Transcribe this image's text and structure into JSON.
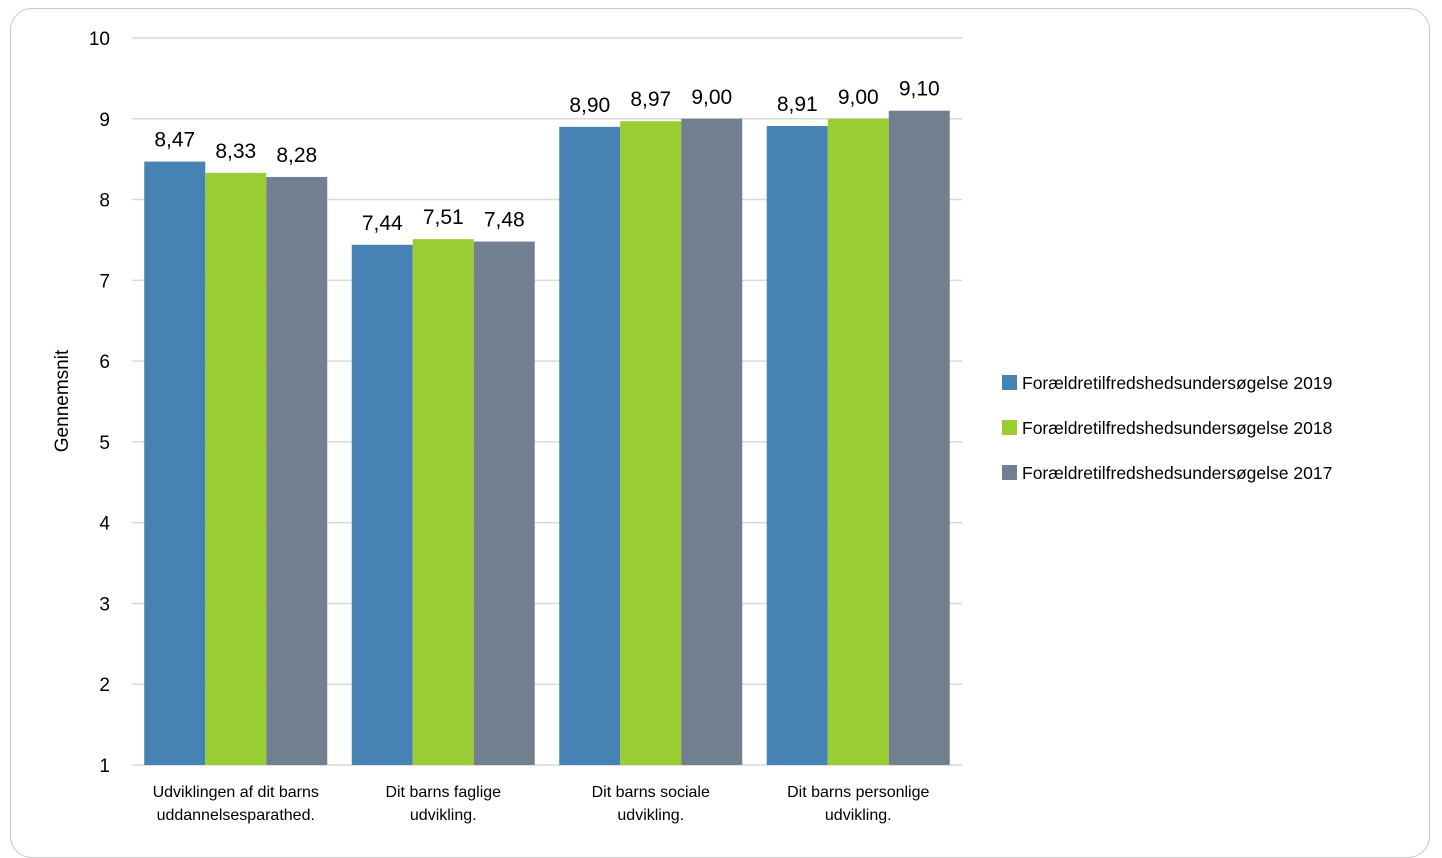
{
  "chart_data": {
    "type": "bar",
    "ylabel": "Gennemsnit",
    "ylim": [
      1,
      10
    ],
    "yticks": [
      1,
      2,
      3,
      4,
      5,
      6,
      7,
      8,
      9,
      10
    ],
    "grid": true,
    "legend_position": "right",
    "categories": [
      [
        "Udviklingen af dit barns",
        "uddannelsesparathed."
      ],
      [
        "Dit barns faglige",
        "udvikling."
      ],
      [
        "Dit barns sociale",
        "udvikling."
      ],
      [
        "Dit barns personlige",
        "udvikling."
      ]
    ],
    "series": [
      {
        "name": "Forældretilfredshedsundersøgelse 2019",
        "color": "#4682b4",
        "values": [
          8.47,
          7.44,
          8.9,
          8.91
        ],
        "labels": [
          "8,47",
          "7,44",
          "8,90",
          "8,91"
        ]
      },
      {
        "name": "Forældretilfredshedsundersøgelse 2018",
        "color": "#9acd32",
        "values": [
          8.33,
          7.51,
          8.97,
          9.0
        ],
        "labels": [
          "8,33",
          "7,51",
          "8,97",
          "9,00"
        ]
      },
      {
        "name": "Forældretilfredshedsundersøgelse 2017",
        "color": "#708090",
        "values": [
          8.28,
          7.48,
          9.0,
          9.1
        ],
        "labels": [
          "8,28",
          "7,48",
          "9,00",
          "9,10"
        ]
      }
    ]
  }
}
